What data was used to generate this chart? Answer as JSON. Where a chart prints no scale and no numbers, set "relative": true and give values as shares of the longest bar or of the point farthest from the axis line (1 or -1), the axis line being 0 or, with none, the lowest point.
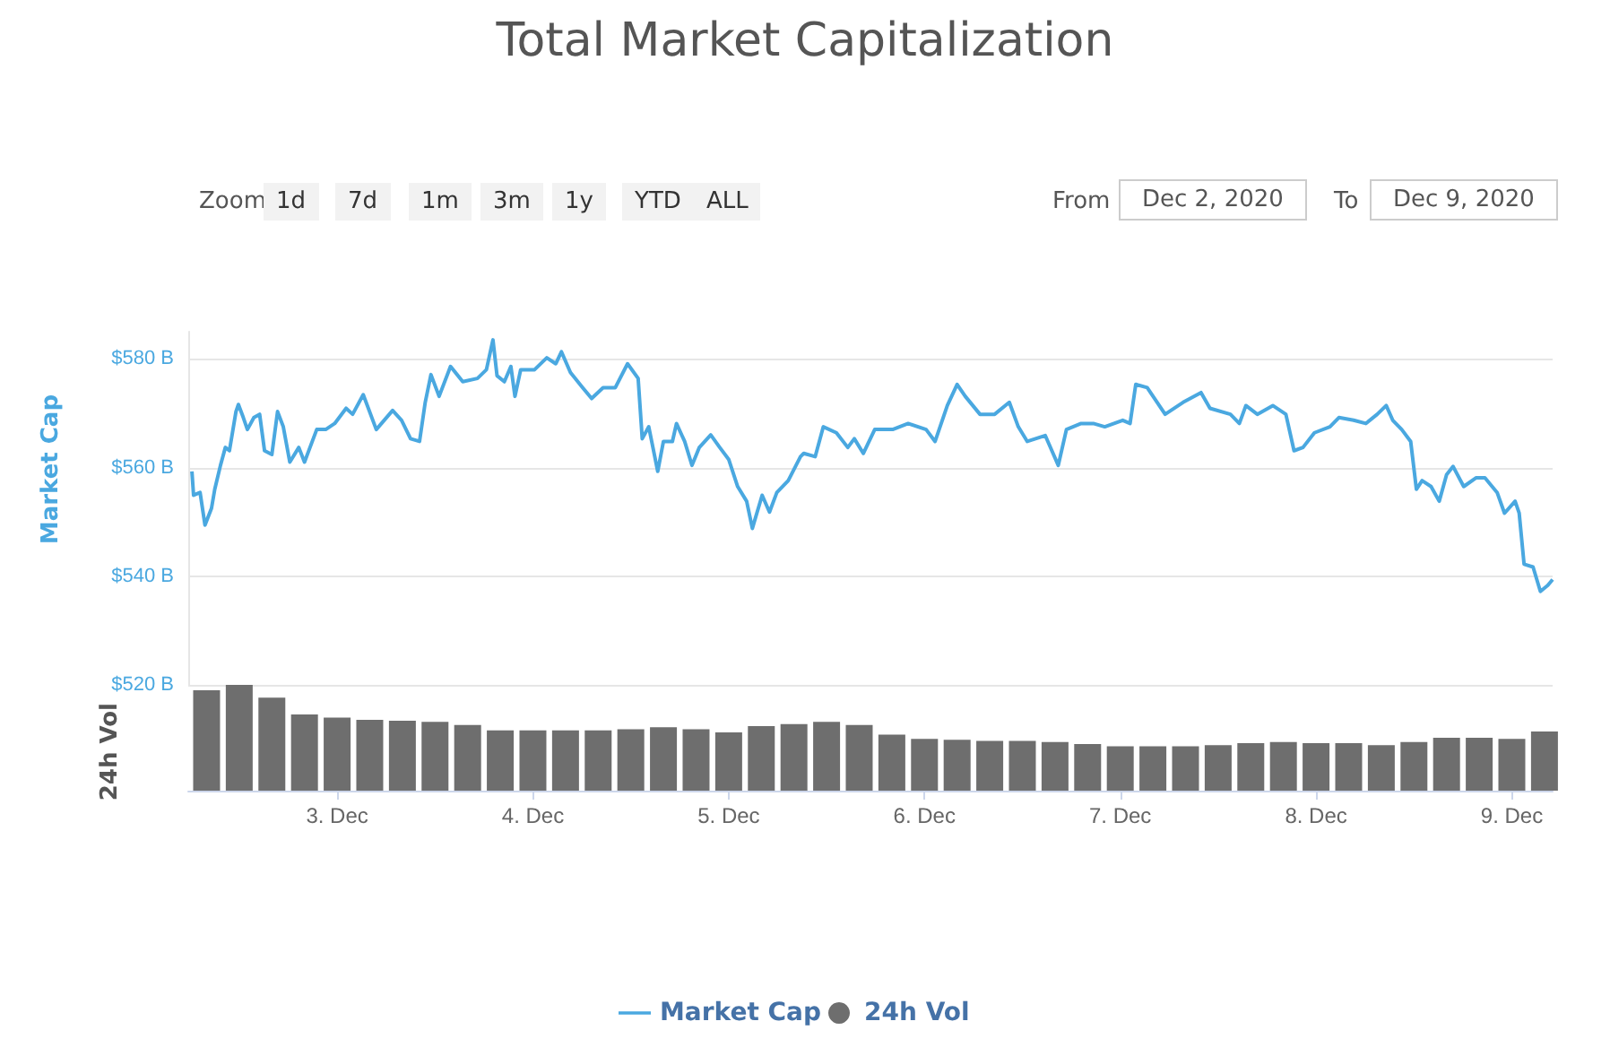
{
  "chart_data": [
    {
      "type": "line",
      "title": "Total Market Capitalization",
      "ylabel": "Market Cap",
      "annotations": [
        "Zoom",
        "1d",
        "7d",
        "1m",
        "3m",
        "1y",
        "YTD",
        "ALL",
        "From",
        "Dec 2, 2020",
        "To",
        "Dec 9, 2020"
      ],
      "xlim": [
        "2020-12-02T05:45",
        "2020-12-09T05:00"
      ],
      "tick_labels": "y",
      "ylim": [
        520,
        585
      ],
      "yticks": [
        {
          "value": 520,
          "label": "$520 B"
        },
        {
          "value": 540,
          "label": "$540 B"
        },
        {
          "value": 560,
          "label": "$560 B"
        },
        {
          "value": 580,
          "label": "$580 B"
        }
      ],
      "grid": "y",
      "legend": "bottom",
      "series": [
        {
          "name": "Market Cap",
          "color": "#4aa8e0",
          "x": [
            "2020-12-02T06:12",
            "2020-12-02T06:24",
            "2020-12-02T07:12",
            "2020-12-02T07:48",
            "2020-12-02T08:36",
            "2020-12-02T09:00",
            "2020-12-02T09:42",
            "2020-12-02T10:18",
            "2020-12-02T10:48",
            "2020-12-02T11:36",
            "2020-12-02T11:54",
            "2020-12-02T12:30",
            "2020-12-02T13:00",
            "2020-12-02T13:48",
            "2020-12-02T14:30",
            "2020-12-02T15:06",
            "2020-12-02T16:00",
            "2020-12-02T16:42",
            "2020-12-02T17:24",
            "2020-12-02T18:12",
            "2020-12-02T19:18",
            "2020-12-02T20:00",
            "2020-12-02T21:30",
            "2020-12-02T22:36",
            "2020-12-02T23:42",
            "2020-12-03T01:06",
            "2020-12-03T01:54",
            "2020-12-03T03:12",
            "2020-12-03T04:48",
            "2020-12-03T06:48",
            "2020-12-03T07:54",
            "2020-12-03T09:00",
            "2020-12-03T10:06",
            "2020-12-03T10:48",
            "2020-12-03T11:30",
            "2020-12-03T12:30",
            "2020-12-03T13:54",
            "2020-12-03T15:24",
            "2020-12-03T17:12",
            "2020-12-03T18:18",
            "2020-12-03T19:06",
            "2020-12-03T19:36",
            "2020-12-03T20:30",
            "2020-12-03T21:18",
            "2020-12-03T21:48",
            "2020-12-03T22:30",
            "2020-12-04T00:12",
            "2020-12-04T01:42",
            "2020-12-04T02:48",
            "2020-12-04T03:30",
            "2020-12-04T04:36",
            "2020-12-04T06:06",
            "2020-12-04T07:12",
            "2020-12-04T08:36",
            "2020-12-04T10:06",
            "2020-12-04T11:36",
            "2020-12-04T12:54",
            "2020-12-04T13:24",
            "2020-12-04T14:12",
            "2020-12-04T15:18",
            "2020-12-04T16:00",
            "2020-12-04T17:06",
            "2020-12-04T17:36",
            "2020-12-04T18:36",
            "2020-12-04T19:30",
            "2020-12-04T20:24",
            "2020-12-04T21:48",
            "2020-12-04T22:54",
            "2020-12-05T00:00",
            "2020-12-05T01:06",
            "2020-12-05T02:12",
            "2020-12-05T02:54",
            "2020-12-05T04:06",
            "2020-12-05T05:00",
            "2020-12-05T05:54",
            "2020-12-05T07:18",
            "2020-12-05T08:48",
            "2020-12-05T09:12",
            "2020-12-05T10:36",
            "2020-12-05T11:36",
            "2020-12-05T13:12",
            "2020-12-05T14:36",
            "2020-12-05T15:24",
            "2020-12-05T16:30",
            "2020-12-05T17:54",
            "2020-12-05T20:06",
            "2020-12-05T22:00",
            "2020-12-06T00:12",
            "2020-12-06T01:18",
            "2020-12-06T02:48",
            "2020-12-06T04:00",
            "2020-12-06T05:00",
            "2020-12-06T06:48",
            "2020-12-06T08:36",
            "2020-12-06T10:24",
            "2020-12-06T11:30",
            "2020-12-06T12:36",
            "2020-12-06T14:48",
            "2020-12-06T16:24",
            "2020-12-06T17:24",
            "2020-12-06T19:12",
            "2020-12-06T20:42",
            "2020-12-06T22:06",
            "2020-12-07T00:18",
            "2020-12-07T01:12",
            "2020-12-07T01:54",
            "2020-12-07T03:18",
            "2020-12-07T05:30",
            "2020-12-07T07:42",
            "2020-12-07T09:54",
            "2020-12-07T11:00",
            "2020-12-07T13:30",
            "2020-12-07T14:36",
            "2020-12-07T15:24",
            "2020-12-07T16:48",
            "2020-12-07T18:42",
            "2020-12-07T20:18",
            "2020-12-07T21:18",
            "2020-12-07T22:24",
            "2020-12-07T23:48",
            "2020-12-08T01:42",
            "2020-12-08T02:48",
            "2020-12-08T04:36",
            "2020-12-08T06:06",
            "2020-12-08T07:30",
            "2020-12-08T08:36",
            "2020-12-08T09:24",
            "2020-12-08T10:30",
            "2020-12-08T11:36",
            "2020-12-08T12:18",
            "2020-12-08T13:00",
            "2020-12-08T14:06",
            "2020-12-08T15:06",
            "2020-12-08T16:00",
            "2020-12-08T16:48",
            "2020-12-08T18:06",
            "2020-12-08T19:36",
            "2020-12-08T20:42",
            "2020-12-08T22:12",
            "2020-12-08T23:06",
            "2020-12-09T00:24",
            "2020-12-09T00:54",
            "2020-12-09T01:30",
            "2020-12-09T02:36",
            "2020-12-09T03:30",
            "2020-12-09T04:24",
            "2020-12-09T05:00"
          ],
          "values": [
            559.3,
            554.9,
            555.4,
            549.4,
            552.5,
            556,
            560.4,
            563.7,
            563.1,
            570.3,
            571.6,
            569.2,
            567,
            569.2,
            569.8,
            563.1,
            562.4,
            570.3,
            567.5,
            561,
            563.7,
            561,
            567,
            567,
            568.1,
            570.9,
            569.8,
            573.4,
            567,
            570.5,
            568.7,
            565.3,
            564.8,
            572,
            577.1,
            573.1,
            578.6,
            575.8,
            576.4,
            578,
            583.5,
            576.9,
            575.8,
            578.6,
            573.1,
            578,
            578,
            580.2,
            579.1,
            581.3,
            577.5,
            574.7,
            572.7,
            574.7,
            574.7,
            579.1,
            576.4,
            565.3,
            567.5,
            559.3,
            564.8,
            564.8,
            568.1,
            564.8,
            560.4,
            563.7,
            566,
            563.7,
            561.5,
            556.5,
            553.8,
            548.8,
            554.9,
            551.8,
            555.4,
            557.6,
            562,
            562.6,
            562,
            567.5,
            566.4,
            563.7,
            565.3,
            562.6,
            567,
            567,
            568.1,
            567,
            564.8,
            571.4,
            575.3,
            573.1,
            569.8,
            569.8,
            572,
            567.5,
            564.8,
            565.9,
            560.4,
            567,
            568.1,
            568.1,
            567.5,
            568.7,
            568.1,
            575.3,
            574.7,
            569.8,
            572,
            573.8,
            570.9,
            569.8,
            568.1,
            571.4,
            569.8,
            571.4,
            569.8,
            563.1,
            563.7,
            566.4,
            567.5,
            569.2,
            568.7,
            568.1,
            569.8,
            571.4,
            568.7,
            567,
            564.8,
            556,
            557.6,
            556.5,
            553.8,
            558.7,
            560.2,
            556.5,
            558.1,
            558.1,
            555.4,
            551.6,
            553.8,
            551.6,
            542.2,
            541.7,
            537.2,
            538.3,
            539.4
          ]
        }
      ]
    },
    {
      "type": "bar",
      "ylabel": "24h Vol",
      "relative": true,
      "legend": "bottom",
      "xlim": [
        "2020-12-02T05:45",
        "2020-12-09T05:00"
      ],
      "xticks": [
        {
          "value": "2020-12-03T00:00",
          "label": "3. Dec"
        },
        {
          "value": "2020-12-04T00:00",
          "label": "4. Dec"
        },
        {
          "value": "2020-12-05T00:00",
          "label": "5. Dec"
        },
        {
          "value": "2020-12-06T00:00",
          "label": "6. Dec"
        },
        {
          "value": "2020-12-07T00:00",
          "label": "7. Dec"
        },
        {
          "value": "2020-12-08T00:00",
          "label": "8. Dec"
        },
        {
          "value": "2020-12-09T00:00",
          "label": "9. Dec"
        }
      ],
      "series": [
        {
          "name": "24h Vol",
          "color": "#6e6e6e",
          "x": [
            "2020-12-02T08:00",
            "2020-12-02T12:00",
            "2020-12-02T16:00",
            "2020-12-02T20:00",
            "2020-12-03T00:00",
            "2020-12-03T04:00",
            "2020-12-03T08:00",
            "2020-12-03T12:00",
            "2020-12-03T16:00",
            "2020-12-03T20:00",
            "2020-12-04T00:00",
            "2020-12-04T04:00",
            "2020-12-04T08:00",
            "2020-12-04T12:00",
            "2020-12-04T16:00",
            "2020-12-04T20:00",
            "2020-12-05T00:00",
            "2020-12-05T04:00",
            "2020-12-05T08:00",
            "2020-12-05T12:00",
            "2020-12-05T16:00",
            "2020-12-05T20:00",
            "2020-12-06T00:00",
            "2020-12-06T04:00",
            "2020-12-06T08:00",
            "2020-12-06T12:00",
            "2020-12-06T16:00",
            "2020-12-06T20:00",
            "2020-12-07T00:00",
            "2020-12-07T04:00",
            "2020-12-07T08:00",
            "2020-12-07T12:00",
            "2020-12-07T16:00",
            "2020-12-07T20:00",
            "2020-12-08T00:00",
            "2020-12-08T04:00",
            "2020-12-08T08:00",
            "2020-12-08T12:00",
            "2020-12-08T16:00",
            "2020-12-08T20:00",
            "2020-12-09T00:00",
            "2020-12-09T04:00"
          ],
          "values": [
            0.95,
            1,
            0.88,
            0.72,
            0.69,
            0.67,
            0.66,
            0.65,
            0.62,
            0.57,
            0.57,
            0.57,
            0.57,
            0.58,
            0.6,
            0.58,
            0.55,
            0.61,
            0.63,
            0.65,
            0.62,
            0.53,
            0.49,
            0.48,
            0.47,
            0.47,
            0.46,
            0.44,
            0.42,
            0.42,
            0.42,
            0.43,
            0.45,
            0.46,
            0.45,
            0.45,
            0.43,
            0.46,
            0.5,
            0.5,
            0.49,
            0.56
          ]
        }
      ]
    }
  ]
}
